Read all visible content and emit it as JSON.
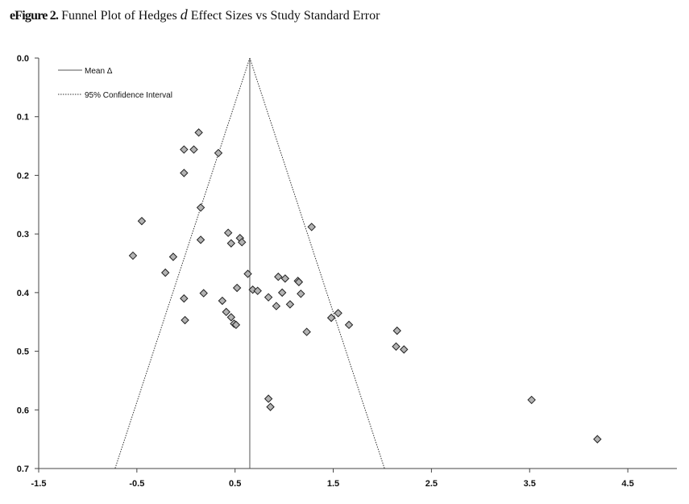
{
  "title": {
    "prefix": "eFigure 2.",
    "pre": "Funnel Plot of Hedges",
    "symbol": "d",
    "post": "Effect Sizes vs Study Standard Error"
  },
  "chart_data": {
    "type": "scatter",
    "title": "Funnel Plot of Hedges d Effect Sizes vs Study Standard Error",
    "xlim": [
      -1.5,
      5.0
    ],
    "ylim": [
      0.0,
      0.7
    ],
    "y_inverted": true,
    "x_ticks": [
      "-1.5",
      "-0.5",
      "0.5",
      "1.5",
      "2.5",
      "3.5",
      "4.5"
    ],
    "x_tick_values": [
      -1.5,
      -0.5,
      0.5,
      1.5,
      2.5,
      3.5,
      4.5
    ],
    "y_ticks": [
      "0.0",
      "0.1",
      "0.2",
      "0.3",
      "0.4",
      "0.5",
      "0.6",
      "0.7"
    ],
    "y_tick_values": [
      0.0,
      0.1,
      0.2,
      0.3,
      0.4,
      0.5,
      0.6,
      0.7
    ],
    "mean_delta": 0.65,
    "ci_multiplier": 1.96,
    "legend": {
      "position": "top-left",
      "mean_label": "Mean Δ",
      "ci_label": "95% Confidence Interval"
    },
    "marker": {
      "shape": "diamond",
      "fill": "#b3b3b3",
      "stroke": "#222222"
    },
    "points": [
      {
        "x": 0.13,
        "y": 0.127
      },
      {
        "x": -0.02,
        "y": 0.156
      },
      {
        "x": 0.08,
        "y": 0.156
      },
      {
        "x": 0.33,
        "y": 0.162
      },
      {
        "x": -0.02,
        "y": 0.196
      },
      {
        "x": 0.15,
        "y": 0.255
      },
      {
        "x": -0.45,
        "y": 0.278
      },
      {
        "x": 1.28,
        "y": 0.288
      },
      {
        "x": 0.43,
        "y": 0.298
      },
      {
        "x": 0.55,
        "y": 0.307
      },
      {
        "x": 0.15,
        "y": 0.31
      },
      {
        "x": 0.46,
        "y": 0.316
      },
      {
        "x": 0.57,
        "y": 0.314
      },
      {
        "x": -0.54,
        "y": 0.337
      },
      {
        "x": -0.13,
        "y": 0.339
      },
      {
        "x": 0.63,
        "y": 0.368
      },
      {
        "x": -0.21,
        "y": 0.366
      },
      {
        "x": 0.94,
        "y": 0.373
      },
      {
        "x": 1.01,
        "y": 0.376
      },
      {
        "x": 1.14,
        "y": 0.38
      },
      {
        "x": 1.15,
        "y": 0.382
      },
      {
        "x": 0.52,
        "y": 0.392
      },
      {
        "x": 0.68,
        "y": 0.395
      },
      {
        "x": 0.73,
        "y": 0.397
      },
      {
        "x": 0.98,
        "y": 0.4
      },
      {
        "x": 0.18,
        "y": 0.401
      },
      {
        "x": 1.17,
        "y": 0.402
      },
      {
        "x": 0.84,
        "y": 0.408
      },
      {
        "x": -0.02,
        "y": 0.41
      },
      {
        "x": 0.37,
        "y": 0.414
      },
      {
        "x": 1.06,
        "y": 0.42
      },
      {
        "x": 0.92,
        "y": 0.423
      },
      {
        "x": 0.41,
        "y": 0.433
      },
      {
        "x": 1.55,
        "y": 0.435
      },
      {
        "x": 0.46,
        "y": 0.442
      },
      {
        "x": 1.48,
        "y": 0.443
      },
      {
        "x": -0.01,
        "y": 0.447
      },
      {
        "x": 0.49,
        "y": 0.453
      },
      {
        "x": 0.51,
        "y": 0.455
      },
      {
        "x": 1.66,
        "y": 0.455
      },
      {
        "x": 1.23,
        "y": 0.467
      },
      {
        "x": 2.15,
        "y": 0.465
      },
      {
        "x": 2.14,
        "y": 0.492
      },
      {
        "x": 2.22,
        "y": 0.497
      },
      {
        "x": 0.84,
        "y": 0.581
      },
      {
        "x": 3.52,
        "y": 0.583
      },
      {
        "x": 0.86,
        "y": 0.595
      },
      {
        "x": 4.19,
        "y": 0.65
      }
    ]
  }
}
